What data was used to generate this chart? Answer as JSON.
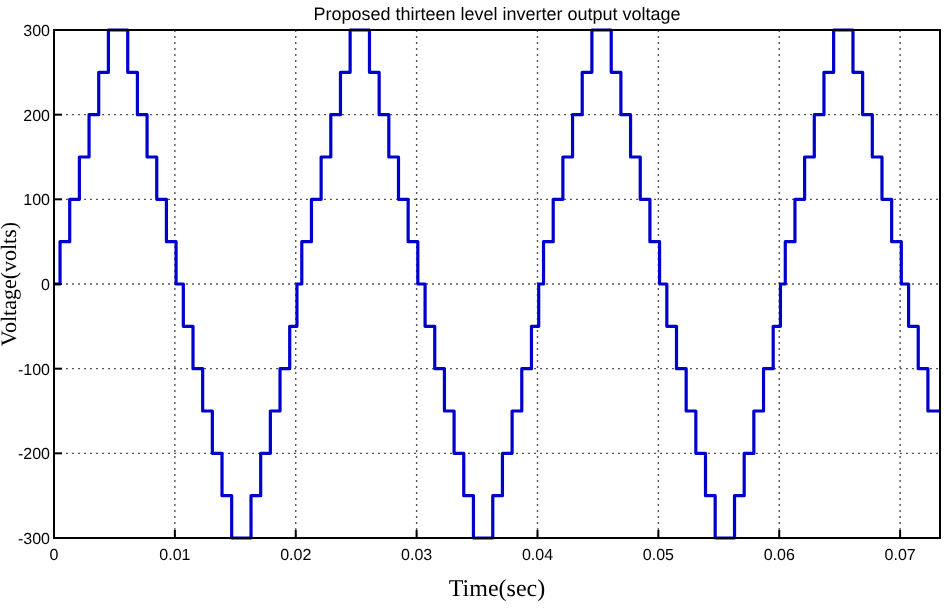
{
  "chart_data": {
    "type": "step",
    "title": "Proposed thirteen level inverter output voltage",
    "xlabel": "Time(sec)",
    "ylabel": "Voltage(volts)",
    "xlim": [
      0,
      0.0733
    ],
    "xticks": [
      0,
      0.01,
      0.02,
      0.03,
      0.04,
      0.05,
      0.06,
      0.07
    ],
    "ylim": [
      -300,
      300
    ],
    "yticks": [
      -300,
      -200,
      -100,
      0,
      100,
      200,
      300
    ],
    "grid": true,
    "line_style": "solid",
    "marker": "none",
    "series": [
      {
        "color": "#0000cc",
        "x": [
          0,
          0.0005,
          0.0013,
          0.0021,
          0.0029,
          0.0037,
          0.0045,
          0.0061,
          0.0069,
          0.0077,
          0.0085,
          0.0093,
          0.0101,
          0.0107,
          0.0115,
          0.0123,
          0.0131,
          0.0139,
          0.0147,
          0.0163,
          0.0171,
          0.0179,
          0.0187,
          0.0195,
          0.0201,
          0.0205,
          0.0213,
          0.0221,
          0.0229,
          0.0237,
          0.0245,
          0.0261,
          0.0269,
          0.0277,
          0.0285,
          0.0293,
          0.0301,
          0.0307,
          0.0315,
          0.0323,
          0.0331,
          0.0339,
          0.0347,
          0.0363,
          0.0371,
          0.0379,
          0.0387,
          0.0395,
          0.0401,
          0.0405,
          0.0413,
          0.0421,
          0.0429,
          0.0437,
          0.0445,
          0.0461,
          0.0469,
          0.0477,
          0.0485,
          0.0493,
          0.0501,
          0.0507,
          0.0515,
          0.0523,
          0.0531,
          0.0539,
          0.0547,
          0.0563,
          0.0571,
          0.0579,
          0.0587,
          0.0595,
          0.0601,
          0.0605,
          0.0613,
          0.0621,
          0.0629,
          0.0637,
          0.0645,
          0.0661,
          0.0669,
          0.0677,
          0.0685,
          0.0693,
          0.0701,
          0.0707,
          0.0715,
          0.0723,
          0.0733
        ],
        "values": [
          0,
          50,
          100,
          150,
          200,
          250,
          300,
          250,
          200,
          150,
          100,
          50,
          0,
          -50,
          -100,
          -150,
          -200,
          -250,
          -300,
          -250,
          -200,
          -150,
          -100,
          -50,
          0,
          50,
          100,
          150,
          200,
          250,
          300,
          250,
          200,
          150,
          100,
          50,
          0,
          -50,
          -100,
          -150,
          -200,
          -250,
          -300,
          -250,
          -200,
          -150,
          -100,
          -50,
          0,
          50,
          100,
          150,
          200,
          250,
          300,
          250,
          200,
          150,
          100,
          50,
          0,
          -50,
          -100,
          -150,
          -200,
          -250,
          -300,
          -250,
          -200,
          -150,
          -100,
          -50,
          0,
          50,
          100,
          150,
          200,
          250,
          300,
          250,
          200,
          150,
          100,
          50,
          0,
          -50,
          -100,
          -150,
          -150
        ]
      }
    ]
  }
}
